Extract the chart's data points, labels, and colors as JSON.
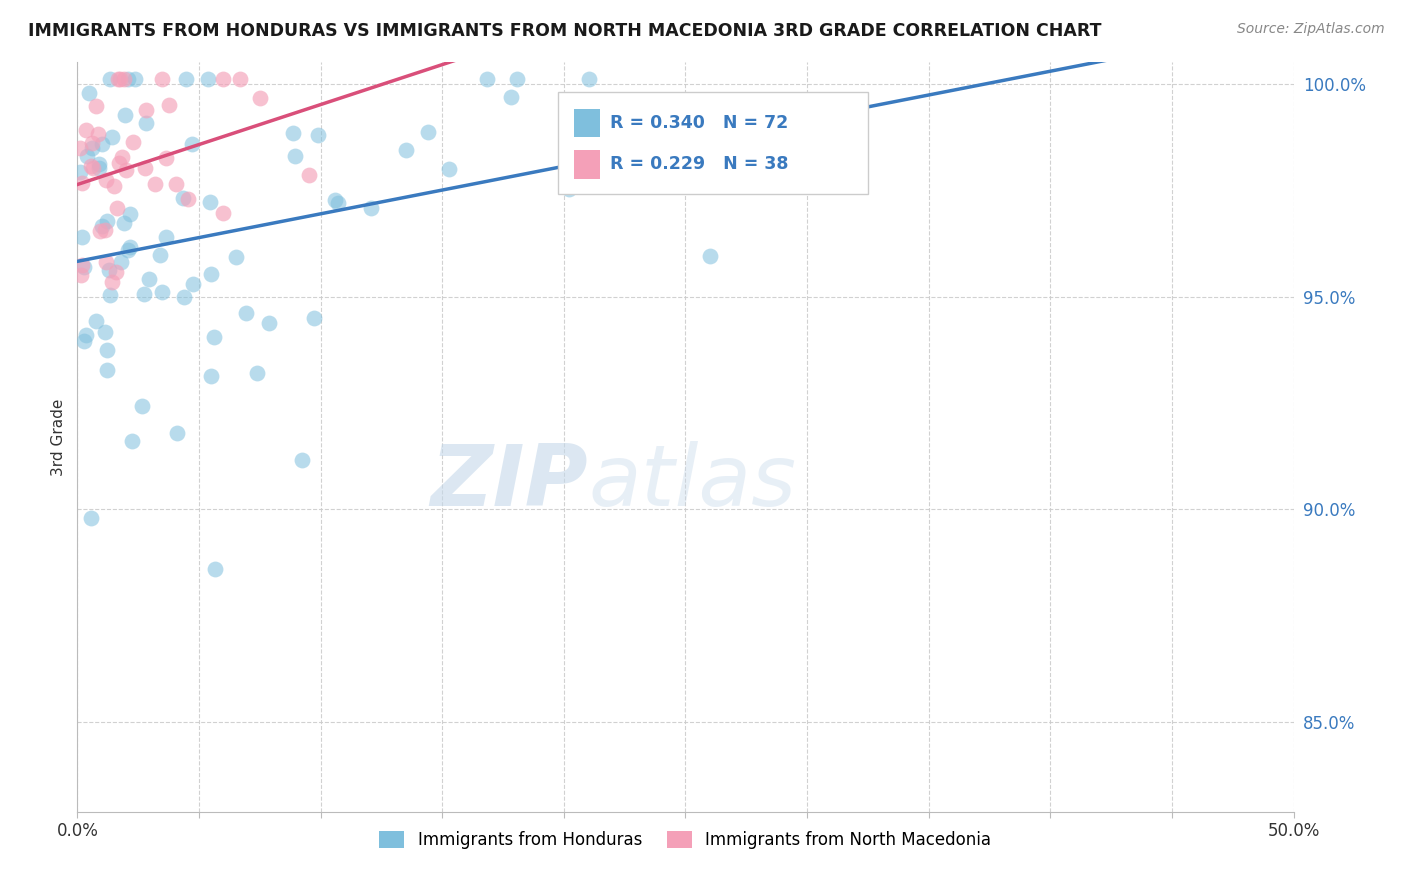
{
  "title": "IMMIGRANTS FROM HONDURAS VS IMMIGRANTS FROM NORTH MACEDONIA 3RD GRADE CORRELATION CHART",
  "source": "Source: ZipAtlas.com",
  "ylabel": "3rd Grade",
  "legend_label_1": "Immigrants from Honduras",
  "legend_label_2": "Immigrants from North Macedonia",
  "R1": 0.34,
  "N1": 72,
  "R2": 0.229,
  "N2": 38,
  "xlim": [
    0.0,
    0.5
  ],
  "ylim": [
    0.829,
    1.005
  ],
  "yticks": [
    0.85,
    0.9,
    0.95,
    1.0
  ],
  "ytick_labels": [
    "85.0%",
    "90.0%",
    "95.0%",
    "100.0%"
  ],
  "xticks": [
    0.0,
    0.05,
    0.1,
    0.15,
    0.2,
    0.25,
    0.3,
    0.35,
    0.4,
    0.45,
    0.5
  ],
  "xtick_labels": [
    "0.0%",
    "",
    "",
    "",
    "",
    "",
    "",
    "",
    "",
    "",
    "50.0%"
  ],
  "color_blue": "#7fbfdd",
  "color_pink": "#f4a0b8",
  "color_blue_line": "#3a7abf",
  "color_pink_line": "#d94f7a",
  "watermark_zip": "ZIP",
  "watermark_atlas": "atlas",
  "background_color": "#ffffff",
  "grid_color": "#cccccc",
  "blue_trendline_x": [
    0.0,
    0.5
  ],
  "blue_trendline_y": [
    0.966,
    1.001
  ],
  "pink_trendline_x": [
    0.0,
    0.35
  ],
  "pink_trendline_y": [
    0.99,
    1.001
  ]
}
